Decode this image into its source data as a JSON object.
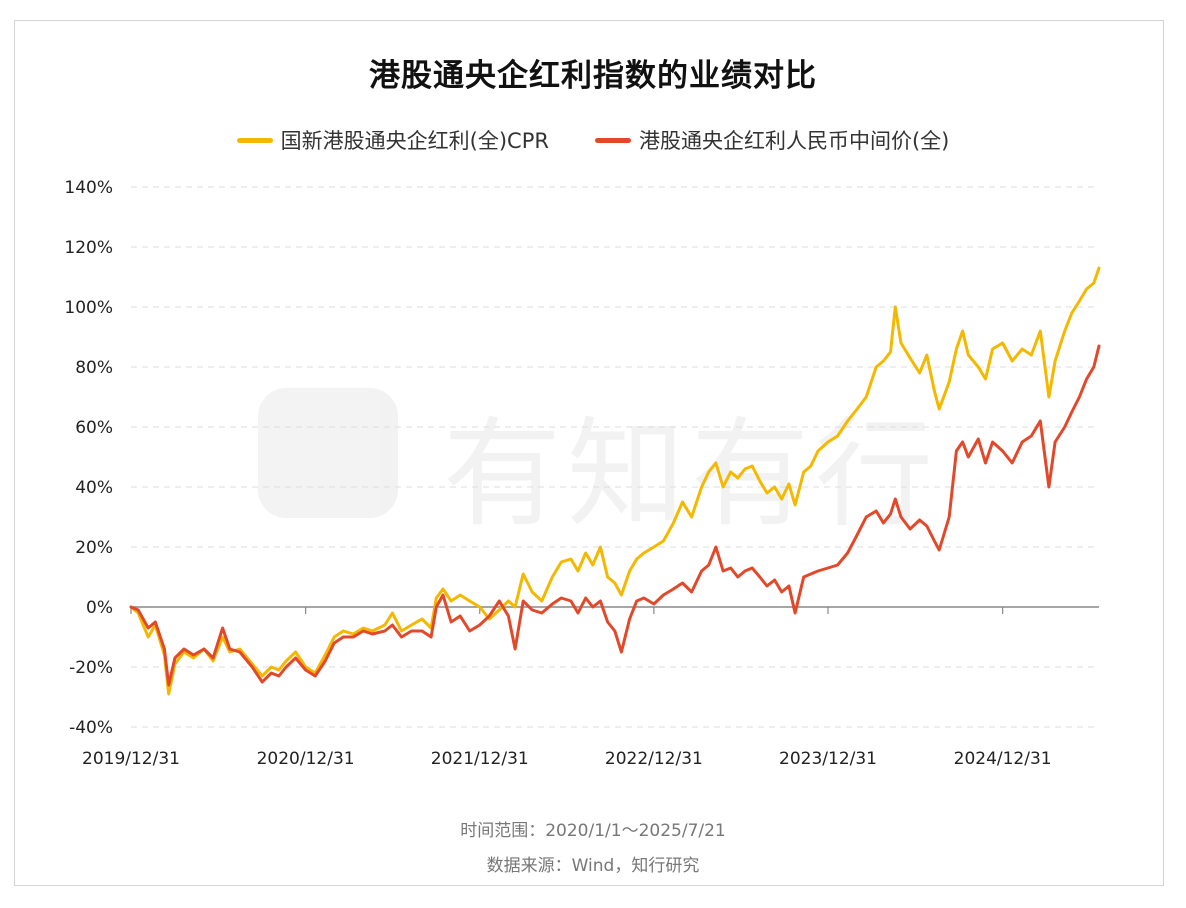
{
  "chart_data": {
    "type": "line",
    "title": "港股通央企红利指数的业绩对比",
    "legend_position": "top-center",
    "grid": true,
    "ylim": [
      -0.4,
      1.4
    ],
    "y_ticks": [
      -0.4,
      -0.2,
      0,
      0.2,
      0.4,
      0.6,
      0.8,
      1.0,
      1.2,
      1.4
    ],
    "y_tick_labels": [
      "-40%",
      "-20%",
      "0%",
      "20%",
      "40%",
      "60%",
      "80%",
      "100%",
      "120%",
      "140%"
    ],
    "x_range": [
      "2019-12-31",
      "2025-07-21"
    ],
    "x_ticks": [
      "2019-12-31",
      "2020-12-31",
      "2021-12-31",
      "2022-12-31",
      "2023-12-31",
      "2024-12-31"
    ],
    "x_tick_labels": [
      "2019/12/31",
      "2020/12/31",
      "2021/12/31",
      "2022/12/31",
      "2023/12/31",
      "2024/12/31"
    ],
    "series": [
      {
        "name": "国新港股通央企红利(全)CPR",
        "color": "#F5B800",
        "points": [
          [
            "2019-12-31",
            0.0
          ],
          [
            "2020-01-15",
            -0.02
          ],
          [
            "2020-02-05",
            -0.1
          ],
          [
            "2020-02-20",
            -0.06
          ],
          [
            "2020-03-10",
            -0.16
          ],
          [
            "2020-03-19",
            -0.29
          ],
          [
            "2020-04-01",
            -0.19
          ],
          [
            "2020-04-20",
            -0.15
          ],
          [
            "2020-05-10",
            -0.17
          ],
          [
            "2020-06-01",
            -0.14
          ],
          [
            "2020-06-20",
            -0.18
          ],
          [
            "2020-07-10",
            -0.1
          ],
          [
            "2020-07-25",
            -0.15
          ],
          [
            "2020-08-15",
            -0.14
          ],
          [
            "2020-09-10",
            -0.19
          ],
          [
            "2020-10-01",
            -0.23
          ],
          [
            "2020-10-20",
            -0.2
          ],
          [
            "2020-11-05",
            -0.21
          ],
          [
            "2020-11-20",
            -0.18
          ],
          [
            "2020-12-10",
            -0.15
          ],
          [
            "2020-12-31",
            -0.2
          ],
          [
            "2021-01-20",
            -0.22
          ],
          [
            "2021-02-10",
            -0.16
          ],
          [
            "2021-03-01",
            -0.1
          ],
          [
            "2021-03-20",
            -0.08
          ],
          [
            "2021-04-10",
            -0.09
          ],
          [
            "2021-05-01",
            -0.07
          ],
          [
            "2021-05-20",
            -0.08
          ],
          [
            "2021-06-15",
            -0.06
          ],
          [
            "2021-07-01",
            -0.02
          ],
          [
            "2021-07-20",
            -0.08
          ],
          [
            "2021-08-10",
            -0.06
          ],
          [
            "2021-09-01",
            -0.04
          ],
          [
            "2021-09-20",
            -0.07
          ],
          [
            "2021-10-01",
            0.03
          ],
          [
            "2021-10-15",
            0.06
          ],
          [
            "2021-11-01",
            0.02
          ],
          [
            "2021-11-20",
            0.04
          ],
          [
            "2021-12-10",
            0.02
          ],
          [
            "2021-12-31",
            0.0
          ],
          [
            "2022-01-20",
            -0.04
          ],
          [
            "2022-02-10",
            -0.01
          ],
          [
            "2022-03-01",
            0.02
          ],
          [
            "2022-03-15",
            0.0
          ],
          [
            "2022-04-01",
            0.11
          ],
          [
            "2022-04-20",
            0.05
          ],
          [
            "2022-05-10",
            0.02
          ],
          [
            "2022-06-01",
            0.1
          ],
          [
            "2022-06-20",
            0.15
          ],
          [
            "2022-07-10",
            0.16
          ],
          [
            "2022-07-25",
            0.12
          ],
          [
            "2022-08-10",
            0.18
          ],
          [
            "2022-08-25",
            0.14
          ],
          [
            "2022-09-10",
            0.2
          ],
          [
            "2022-09-25",
            0.1
          ],
          [
            "2022-10-10",
            0.08
          ],
          [
            "2022-10-24",
            0.04
          ],
          [
            "2022-11-10",
            0.12
          ],
          [
            "2022-11-25",
            0.16
          ],
          [
            "2022-12-10",
            0.18
          ],
          [
            "2022-12-31",
            0.2
          ],
          [
            "2023-01-20",
            0.22
          ],
          [
            "2023-02-10",
            0.28
          ],
          [
            "2023-03-01",
            0.35
          ],
          [
            "2023-03-20",
            0.3
          ],
          [
            "2023-04-10",
            0.4
          ],
          [
            "2023-04-25",
            0.45
          ],
          [
            "2023-05-10",
            0.48
          ],
          [
            "2023-05-25",
            0.4
          ],
          [
            "2023-06-10",
            0.45
          ],
          [
            "2023-06-25",
            0.43
          ],
          [
            "2023-07-10",
            0.46
          ],
          [
            "2023-07-25",
            0.47
          ],
          [
            "2023-08-10",
            0.42
          ],
          [
            "2023-08-25",
            0.38
          ],
          [
            "2023-09-10",
            0.4
          ],
          [
            "2023-09-25",
            0.36
          ],
          [
            "2023-10-10",
            0.41
          ],
          [
            "2023-10-23",
            0.34
          ],
          [
            "2023-11-10",
            0.45
          ],
          [
            "2023-11-25",
            0.47
          ],
          [
            "2023-12-10",
            0.52
          ],
          [
            "2023-12-31",
            0.55
          ],
          [
            "2024-01-20",
            0.57
          ],
          [
            "2024-02-10",
            0.62
          ],
          [
            "2024-03-01",
            0.66
          ],
          [
            "2024-03-20",
            0.7
          ],
          [
            "2024-04-10",
            0.8
          ],
          [
            "2024-04-25",
            0.82
          ],
          [
            "2024-05-10",
            0.85
          ],
          [
            "2024-05-20",
            1.0
          ],
          [
            "2024-06-01",
            0.88
          ],
          [
            "2024-06-20",
            0.83
          ],
          [
            "2024-07-10",
            0.78
          ],
          [
            "2024-07-25",
            0.84
          ],
          [
            "2024-08-10",
            0.72
          ],
          [
            "2024-08-20",
            0.66
          ],
          [
            "2024-09-10",
            0.75
          ],
          [
            "2024-09-25",
            0.86
          ],
          [
            "2024-10-08",
            0.92
          ],
          [
            "2024-10-20",
            0.84
          ],
          [
            "2024-11-10",
            0.8
          ],
          [
            "2024-11-25",
            0.76
          ],
          [
            "2024-12-10",
            0.86
          ],
          [
            "2024-12-31",
            0.88
          ],
          [
            "2025-01-20",
            0.82
          ],
          [
            "2025-02-10",
            0.86
          ],
          [
            "2025-03-01",
            0.84
          ],
          [
            "2025-03-20",
            0.92
          ],
          [
            "2025-04-07",
            0.7
          ],
          [
            "2025-04-20",
            0.82
          ],
          [
            "2025-05-10",
            0.92
          ],
          [
            "2025-05-25",
            0.98
          ],
          [
            "2025-06-10",
            1.02
          ],
          [
            "2025-06-25",
            1.06
          ],
          [
            "2025-07-10",
            1.08
          ],
          [
            "2025-07-21",
            1.13
          ]
        ]
      },
      {
        "name": "港股通央企红利人民币中间价(全)",
        "color": "#E2492A",
        "points": [
          [
            "2019-12-31",
            0.0
          ],
          [
            "2020-01-15",
            -0.01
          ],
          [
            "2020-02-05",
            -0.07
          ],
          [
            "2020-02-20",
            -0.05
          ],
          [
            "2020-03-10",
            -0.14
          ],
          [
            "2020-03-19",
            -0.26
          ],
          [
            "2020-04-01",
            -0.17
          ],
          [
            "2020-04-20",
            -0.14
          ],
          [
            "2020-05-10",
            -0.16
          ],
          [
            "2020-06-01",
            -0.14
          ],
          [
            "2020-06-20",
            -0.17
          ],
          [
            "2020-07-10",
            -0.07
          ],
          [
            "2020-07-25",
            -0.14
          ],
          [
            "2020-08-15",
            -0.15
          ],
          [
            "2020-09-10",
            -0.2
          ],
          [
            "2020-10-01",
            -0.25
          ],
          [
            "2020-10-20",
            -0.22
          ],
          [
            "2020-11-05",
            -0.23
          ],
          [
            "2020-11-20",
            -0.2
          ],
          [
            "2020-12-10",
            -0.17
          ],
          [
            "2020-12-31",
            -0.21
          ],
          [
            "2021-01-20",
            -0.23
          ],
          [
            "2021-02-10",
            -0.18
          ],
          [
            "2021-03-01",
            -0.12
          ],
          [
            "2021-03-20",
            -0.1
          ],
          [
            "2021-04-10",
            -0.1
          ],
          [
            "2021-05-01",
            -0.08
          ],
          [
            "2021-05-20",
            -0.09
          ],
          [
            "2021-06-15",
            -0.08
          ],
          [
            "2021-07-01",
            -0.06
          ],
          [
            "2021-07-20",
            -0.1
          ],
          [
            "2021-08-10",
            -0.08
          ],
          [
            "2021-09-01",
            -0.08
          ],
          [
            "2021-09-20",
            -0.1
          ],
          [
            "2021-10-01",
            0.0
          ],
          [
            "2021-10-15",
            0.04
          ],
          [
            "2021-11-01",
            -0.05
          ],
          [
            "2021-11-20",
            -0.03
          ],
          [
            "2021-12-10",
            -0.08
          ],
          [
            "2021-12-31",
            -0.06
          ],
          [
            "2022-01-20",
            -0.03
          ],
          [
            "2022-02-10",
            0.02
          ],
          [
            "2022-03-01",
            -0.03
          ],
          [
            "2022-03-15",
            -0.14
          ],
          [
            "2022-04-01",
            0.02
          ],
          [
            "2022-04-20",
            -0.01
          ],
          [
            "2022-05-10",
            -0.02
          ],
          [
            "2022-06-01",
            0.01
          ],
          [
            "2022-06-20",
            0.03
          ],
          [
            "2022-07-10",
            0.02
          ],
          [
            "2022-07-25",
            -0.02
          ],
          [
            "2022-08-10",
            0.03
          ],
          [
            "2022-08-25",
            0.0
          ],
          [
            "2022-09-10",
            0.02
          ],
          [
            "2022-09-25",
            -0.05
          ],
          [
            "2022-10-10",
            -0.08
          ],
          [
            "2022-10-24",
            -0.15
          ],
          [
            "2022-11-10",
            -0.04
          ],
          [
            "2022-11-25",
            0.02
          ],
          [
            "2022-12-10",
            0.03
          ],
          [
            "2022-12-31",
            0.01
          ],
          [
            "2023-01-20",
            0.04
          ],
          [
            "2023-02-10",
            0.06
          ],
          [
            "2023-03-01",
            0.08
          ],
          [
            "2023-03-20",
            0.05
          ],
          [
            "2023-04-10",
            0.12
          ],
          [
            "2023-04-25",
            0.14
          ],
          [
            "2023-05-10",
            0.2
          ],
          [
            "2023-05-25",
            0.12
          ],
          [
            "2023-06-10",
            0.13
          ],
          [
            "2023-06-25",
            0.1
          ],
          [
            "2023-07-10",
            0.12
          ],
          [
            "2023-07-25",
            0.13
          ],
          [
            "2023-08-10",
            0.1
          ],
          [
            "2023-08-25",
            0.07
          ],
          [
            "2023-09-10",
            0.09
          ],
          [
            "2023-09-25",
            0.05
          ],
          [
            "2023-10-10",
            0.07
          ],
          [
            "2023-10-23",
            -0.02
          ],
          [
            "2023-11-10",
            0.1
          ],
          [
            "2023-11-25",
            0.11
          ],
          [
            "2023-12-10",
            0.12
          ],
          [
            "2023-12-31",
            0.13
          ],
          [
            "2024-01-20",
            0.14
          ],
          [
            "2024-02-10",
            0.18
          ],
          [
            "2024-03-01",
            0.24
          ],
          [
            "2024-03-20",
            0.3
          ],
          [
            "2024-04-10",
            0.32
          ],
          [
            "2024-04-25",
            0.28
          ],
          [
            "2024-05-10",
            0.31
          ],
          [
            "2024-05-20",
            0.36
          ],
          [
            "2024-06-01",
            0.3
          ],
          [
            "2024-06-20",
            0.26
          ],
          [
            "2024-07-10",
            0.29
          ],
          [
            "2024-07-25",
            0.27
          ],
          [
            "2024-08-10",
            0.22
          ],
          [
            "2024-08-20",
            0.19
          ],
          [
            "2024-09-10",
            0.3
          ],
          [
            "2024-09-25",
            0.52
          ],
          [
            "2024-10-08",
            0.55
          ],
          [
            "2024-10-20",
            0.5
          ],
          [
            "2024-11-10",
            0.56
          ],
          [
            "2024-11-25",
            0.48
          ],
          [
            "2024-12-10",
            0.55
          ],
          [
            "2024-12-31",
            0.52
          ],
          [
            "2025-01-20",
            0.48
          ],
          [
            "2025-02-10",
            0.55
          ],
          [
            "2025-03-01",
            0.57
          ],
          [
            "2025-03-20",
            0.62
          ],
          [
            "2025-04-07",
            0.4
          ],
          [
            "2025-04-20",
            0.55
          ],
          [
            "2025-05-10",
            0.6
          ],
          [
            "2025-05-25",
            0.65
          ],
          [
            "2025-06-10",
            0.7
          ],
          [
            "2025-06-25",
            0.76
          ],
          [
            "2025-07-10",
            0.8
          ],
          [
            "2025-07-21",
            0.87
          ]
        ]
      }
    ]
  },
  "footer": {
    "time_range": "时间范围：2020/1/1～2025/7/21",
    "source": "数据来源：Wind，知行研究"
  },
  "watermark": {
    "text": "有知有行"
  }
}
